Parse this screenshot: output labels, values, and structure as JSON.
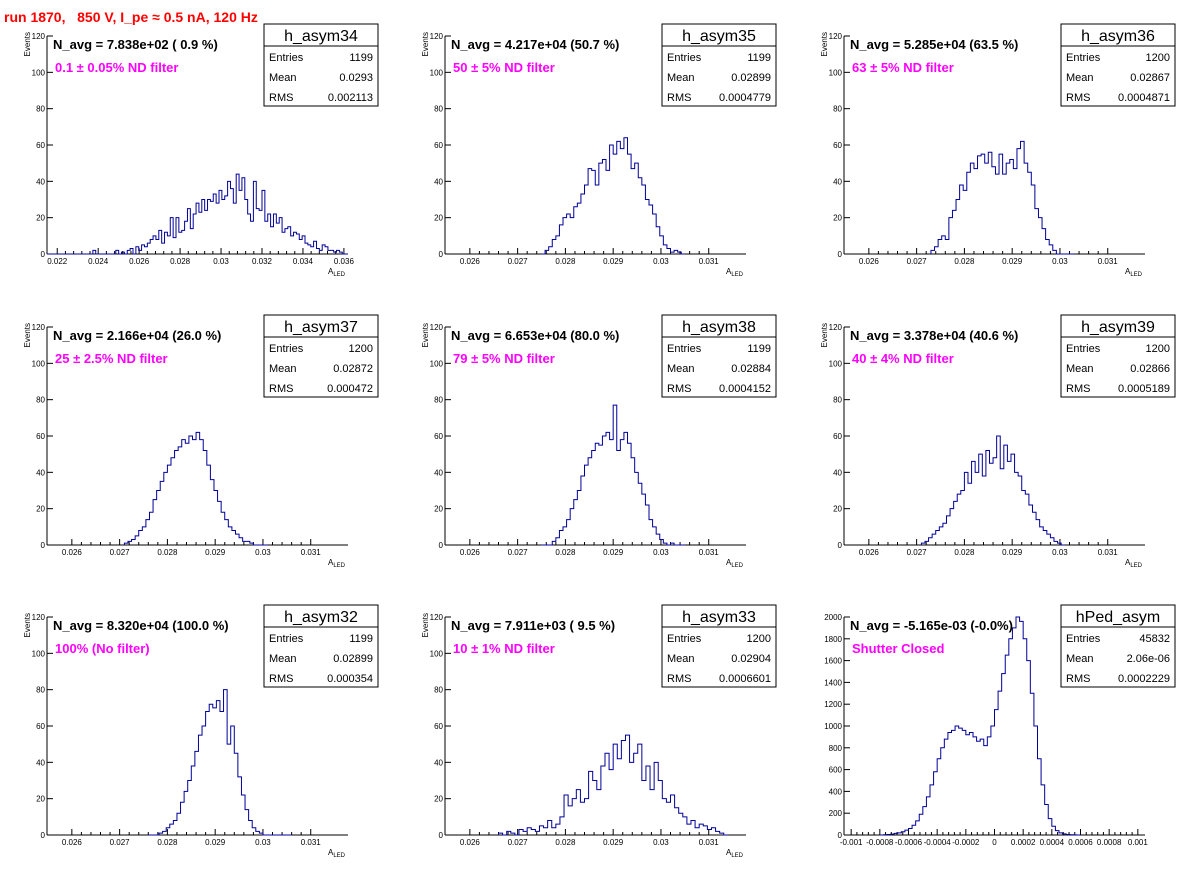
{
  "page": {
    "title": "run 1870,   850 V, I_pe ≈ 0.5 nA, 120 Hz"
  },
  "colors": {
    "title": "#ff0000",
    "hist_line": "#000099",
    "annotation": "#ff00ff",
    "axis": "#000000"
  },
  "chart_data": [
    {
      "type": "histogram",
      "name": "h_asym34",
      "stats": {
        "entries": "1199",
        "mean": "0.0293",
        "rms": "0.002113"
      },
      "navg_label": "N_avg = 7.838e+02 ( 0.9 %)",
      "filter_label": "0.1 ± 0.05% ND filter",
      "xlabel": "A",
      "xlabel_sub": "LED",
      "ylabel": "Events",
      "xlim": [
        0.0215,
        0.0362
      ],
      "ylim": [
        0,
        120
      ],
      "x_ticks": [
        0.022,
        0.024,
        0.026,
        0.028,
        0.03,
        0.032,
        0.034,
        0.036
      ],
      "x_tick_labels": [
        "0.022",
        "0.024",
        "0.026",
        "0.028",
        "0.03",
        "0.032",
        "0.034",
        "0.036"
      ],
      "y_ticks": [
        0,
        20,
        40,
        60,
        80,
        100,
        120
      ],
      "y_tick_labels": [
        "0",
        "20",
        "40",
        "60",
        "80",
        "100",
        "120"
      ],
      "bins": {
        "x_start": 0.0215,
        "x_end": 0.0362,
        "counts": [
          0,
          0,
          0,
          0,
          0,
          0,
          0,
          0,
          0,
          0,
          0,
          0,
          0,
          0,
          0,
          0,
          2,
          0,
          0,
          0,
          0,
          0,
          0,
          0,
          2,
          0,
          1,
          0,
          2,
          3,
          0,
          4,
          2,
          5,
          4,
          6,
          8,
          10,
          8,
          13,
          6,
          12,
          10,
          20,
          9,
          20,
          12,
          13,
          18,
          25,
          14,
          22,
          28,
          23,
          30,
          24,
          30,
          29,
          33,
          28,
          35,
          30,
          32,
          40,
          36,
          28,
          44,
          35,
          42,
          30,
          22,
          18,
          40,
          25,
          24,
          35,
          18,
          22,
          15,
          22,
          17,
          20,
          12,
          14,
          15,
          10,
          12,
          11,
          8,
          10,
          6,
          5,
          4,
          7,
          3,
          2,
          5,
          4,
          2,
          2,
          1,
          2,
          1,
          0,
          0
        ]
      }
    },
    {
      "type": "histogram",
      "name": "h_asym35",
      "stats": {
        "entries": "1199",
        "mean": "0.02899",
        "rms": "0.0004779"
      },
      "navg_label": "N_avg = 4.217e+04 (50.7 %)",
      "filter_label": "50 ± 5% ND filter",
      "xlabel": "A",
      "xlabel_sub": "LED",
      "ylabel": "Events",
      "xlim": [
        0.02548,
        0.03178
      ],
      "ylim": [
        0,
        120
      ],
      "x_ticks": [
        0.026,
        0.027,
        0.028,
        0.029,
        0.03,
        0.031
      ],
      "x_tick_labels": [
        "0.026",
        "0.027",
        "0.028",
        "0.029",
        "0.03",
        "0.031"
      ],
      "y_ticks": [
        0,
        20,
        40,
        60,
        80,
        100,
        120
      ],
      "y_tick_labels": [
        "0",
        "20",
        "40",
        "60",
        "80",
        "100",
        "120"
      ],
      "bins": {
        "x_start": 0.0275,
        "x_end": 0.0305,
        "counts": [
          0,
          2,
          4,
          8,
          10,
          16,
          20,
          22,
          20,
          26,
          28,
          33,
          38,
          47,
          46,
          38,
          50,
          52,
          46,
          60,
          55,
          62,
          58,
          64,
          55,
          47,
          50,
          42,
          38,
          30,
          27,
          22,
          15,
          10,
          5,
          3,
          1,
          2,
          1,
          0
        ]
      }
    },
    {
      "type": "histogram",
      "name": "h_asym36",
      "stats": {
        "entries": "1200",
        "mean": "0.02867",
        "rms": "0.0004871"
      },
      "navg_label": "N_avg = 5.285e+04 (63.5 %)",
      "filter_label": "63 ± 5% ND filter",
      "xlabel": "A",
      "xlabel_sub": "LED",
      "ylabel": "Events",
      "xlim": [
        0.02548,
        0.03178
      ],
      "ylim": [
        0,
        120
      ],
      "x_ticks": [
        0.026,
        0.027,
        0.028,
        0.029,
        0.03,
        0.031
      ],
      "x_tick_labels": [
        "0.026",
        "0.027",
        "0.028",
        "0.029",
        "0.03",
        "0.031"
      ],
      "y_ticks": [
        0,
        20,
        40,
        60,
        80,
        100,
        120
      ],
      "y_tick_labels": [
        "0",
        "20",
        "40",
        "60",
        "80",
        "100",
        "120"
      ],
      "bins": {
        "x_start": 0.0273,
        "x_end": 0.0303,
        "counts": [
          2,
          4,
          8,
          10,
          8,
          20,
          24,
          30,
          38,
          35,
          45,
          50,
          47,
          54,
          55,
          50,
          56,
          48,
          44,
          55,
          44,
          50,
          52,
          47,
          58,
          62,
          50,
          45,
          38,
          25,
          20,
          14,
          8,
          5,
          2,
          0,
          0,
          0,
          0,
          0
        ]
      }
    },
    {
      "type": "histogram",
      "name": "h_asym37",
      "stats": {
        "entries": "1200",
        "mean": "0.02872",
        "rms": "0.000472"
      },
      "navg_label": "N_avg = 2.166e+04 (26.0 %)",
      "filter_label": "25 ± 2.5% ND filter",
      "xlabel": "A",
      "xlabel_sub": "LED",
      "ylabel": "Events",
      "xlim": [
        0.02548,
        0.03178
      ],
      "ylim": [
        0,
        120
      ],
      "x_ticks": [
        0.026,
        0.027,
        0.028,
        0.029,
        0.03,
        0.031
      ],
      "x_tick_labels": [
        "0.026",
        "0.027",
        "0.028",
        "0.029",
        "0.03",
        "0.031"
      ],
      "y_ticks": [
        0,
        20,
        40,
        60,
        80,
        100,
        120
      ],
      "y_tick_labels": [
        "0",
        "20",
        "40",
        "60",
        "80",
        "100",
        "120"
      ],
      "bins": {
        "x_start": 0.0271,
        "x_end": 0.0301,
        "counts": [
          1,
          2,
          3,
          5,
          8,
          10,
          14,
          18,
          25,
          30,
          35,
          40,
          44,
          48,
          52,
          54,
          58,
          56,
          60,
          58,
          62,
          58,
          52,
          44,
          36,
          30,
          24,
          18,
          14,
          10,
          8,
          6,
          4,
          2,
          2,
          1,
          0,
          0,
          0,
          0
        ]
      }
    },
    {
      "type": "histogram",
      "name": "h_asym38",
      "stats": {
        "entries": "1199",
        "mean": "0.02884",
        "rms": "0.0004152"
      },
      "navg_label": "N_avg = 6.653e+04 (80.0 %)",
      "filter_label": "79 ± 5% ND filter",
      "xlabel": "A",
      "xlabel_sub": "LED",
      "ylabel": "Events",
      "xlim": [
        0.02548,
        0.03178
      ],
      "ylim": [
        0,
        120
      ],
      "x_ticks": [
        0.026,
        0.027,
        0.028,
        0.029,
        0.03,
        0.031
      ],
      "x_tick_labels": [
        "0.026",
        "0.027",
        "0.028",
        "0.029",
        "0.03",
        "0.031"
      ],
      "y_ticks": [
        0,
        20,
        40,
        60,
        80,
        100,
        120
      ],
      "y_tick_labels": [
        "0",
        "20",
        "40",
        "60",
        "80",
        "100",
        "120"
      ],
      "bins": {
        "x_start": 0.0275,
        "x_end": 0.0305,
        "counts": [
          0,
          0,
          0,
          2,
          4,
          8,
          10,
          14,
          20,
          25,
          30,
          38,
          44,
          48,
          52,
          56,
          55,
          60,
          62,
          58,
          77,
          52,
          58,
          62,
          56,
          48,
          40,
          34,
          28,
          22,
          14,
          10,
          6,
          3,
          1,
          0,
          1,
          0,
          0,
          0
        ]
      }
    },
    {
      "type": "histogram",
      "name": "h_asym39",
      "stats": {
        "entries": "1200",
        "mean": "0.02866",
        "rms": "0.0005189"
      },
      "navg_label": "N_avg = 3.378e+04 (40.6 %)",
      "filter_label": "40 ± 4% ND filter",
      "xlabel": "A",
      "xlabel_sub": "LED",
      "ylabel": "Events",
      "xlim": [
        0.02548,
        0.03178
      ],
      "ylim": [
        0,
        120
      ],
      "x_ticks": [
        0.026,
        0.027,
        0.028,
        0.029,
        0.03,
        0.031
      ],
      "x_tick_labels": [
        "0.026",
        "0.027",
        "0.028",
        "0.029",
        "0.03",
        "0.031"
      ],
      "y_ticks": [
        0,
        20,
        40,
        60,
        80,
        100,
        120
      ],
      "y_tick_labels": [
        "0",
        "20",
        "40",
        "60",
        "80",
        "100",
        "120"
      ],
      "bins": {
        "x_start": 0.0271,
        "x_end": 0.0301,
        "counts": [
          1,
          2,
          4,
          6,
          8,
          10,
          12,
          16,
          20,
          24,
          28,
          30,
          40,
          34,
          46,
          40,
          50,
          38,
          52,
          45,
          48,
          60,
          42,
          55,
          46,
          50,
          40,
          38,
          30,
          28,
          22,
          18,
          14,
          10,
          8,
          6,
          4,
          2,
          1,
          0
        ]
      }
    },
    {
      "type": "histogram",
      "name": "h_asym32",
      "stats": {
        "entries": "1199",
        "mean": "0.02899",
        "rms": "0.000354"
      },
      "navg_label": "N_avg = 8.320e+04 (100.0 %)",
      "filter_label": "100% (No filter)",
      "xlabel": "A",
      "xlabel_sub": "LED",
      "ylabel": "Events",
      "xlim": [
        0.02548,
        0.03178
      ],
      "ylim": [
        0,
        120
      ],
      "x_ticks": [
        0.026,
        0.027,
        0.028,
        0.029,
        0.03,
        0.031
      ],
      "x_tick_labels": [
        "0.026",
        "0.027",
        "0.028",
        "0.029",
        "0.03",
        "0.031"
      ],
      "y_ticks": [
        0,
        20,
        40,
        60,
        80,
        100,
        120
      ],
      "y_tick_labels": [
        "0",
        "20",
        "40",
        "60",
        "80",
        "100",
        "120"
      ],
      "bins": {
        "x_start": 0.0276,
        "x_end": 0.0306,
        "counts": [
          0,
          0,
          0,
          1,
          2,
          4,
          6,
          8,
          12,
          18,
          24,
          30,
          38,
          46,
          55,
          60,
          68,
          72,
          70,
          74,
          68,
          80,
          50,
          60,
          45,
          32,
          22,
          14,
          8,
          4,
          2,
          1,
          0,
          0,
          0,
          0,
          0,
          0,
          0,
          0
        ]
      }
    },
    {
      "type": "histogram",
      "name": "h_asym33",
      "stats": {
        "entries": "1200",
        "mean": "0.02904",
        "rms": "0.0006601"
      },
      "navg_label": "N_avg = 7.911e+03 ( 9.5 %)",
      "filter_label": "10 ± 1% ND filter",
      "xlabel": "A",
      "xlabel_sub": "LED",
      "ylabel": "Events",
      "xlim": [
        0.02548,
        0.03178
      ],
      "ylim": [
        0,
        120
      ],
      "x_ticks": [
        0.026,
        0.027,
        0.028,
        0.029,
        0.03,
        0.031
      ],
      "x_tick_labels": [
        "0.026",
        "0.027",
        "0.028",
        "0.029",
        "0.03",
        "0.031"
      ],
      "y_ticks": [
        0,
        20,
        40,
        60,
        80,
        100,
        120
      ],
      "y_tick_labels": [
        "0",
        "20",
        "40",
        "60",
        "80",
        "100",
        "120"
      ],
      "bins": {
        "x_start": 0.0266,
        "x_end": 0.0314,
        "counts": [
          1,
          0,
          2,
          1,
          0,
          3,
          2,
          4,
          3,
          2,
          5,
          4,
          8,
          4,
          6,
          10,
          22,
          16,
          20,
          25,
          18,
          20,
          35,
          30,
          25,
          38,
          45,
          36,
          50,
          42,
          52,
          55,
          40,
          45,
          50,
          30,
          38,
          25,
          40,
          30,
          20,
          18,
          22,
          15,
          12,
          10,
          6,
          8,
          4,
          6,
          5,
          3,
          4,
          2,
          1,
          0
        ]
      }
    },
    {
      "type": "histogram",
      "name": "hPed_asym",
      "stats": {
        "entries": "45832",
        "mean": "2.06e-06",
        "rms": "0.0002229"
      },
      "navg_label": "N_avg = -5.165e-03 (-0.0%)",
      "filter_label": "Shutter Closed",
      "xlabel": "",
      "xlabel_sub": "",
      "ylabel": "",
      "xlim": [
        -0.00105,
        0.00105
      ],
      "ylim": [
        0,
        2000
      ],
      "x_ticks": [
        -0.001,
        -0.0008,
        -0.0006,
        -0.0004,
        -0.0002,
        0,
        0.0002,
        0.0004,
        0.0006,
        0.0008,
        0.001
      ],
      "x_tick_labels": [
        "-0.001",
        "-0.0008",
        "-0.0006",
        "-0.0004",
        "-0.0002",
        "0",
        "0.0002",
        "0.0004",
        "0.0006",
        "0.0008",
        "0.001"
      ],
      "y_ticks": [
        0,
        200,
        400,
        600,
        800,
        1000,
        1200,
        1400,
        1600,
        1800,
        2000
      ],
      "y_tick_labels": [
        "0",
        "200",
        "400",
        "600",
        "800",
        "1000",
        "1200",
        "1400",
        "1600",
        "1800",
        "2000"
      ],
      "bins": {
        "x_start": -0.0008,
        "x_end": 0.0006,
        "counts": [
          0,
          2,
          5,
          8,
          15,
          20,
          30,
          45,
          60,
          90,
          130,
          190,
          260,
          350,
          460,
          580,
          700,
          800,
          880,
          940,
          960,
          1000,
          980,
          960,
          920,
          940,
          900,
          860,
          880,
          820,
          900,
          1000,
          1150,
          1320,
          1480,
          1650,
          1800,
          1900,
          2000,
          1960,
          1800,
          1600,
          1300,
          1000,
          700,
          460,
          280,
          150,
          80,
          40,
          20,
          10,
          5,
          2,
          1,
          0
        ]
      }
    }
  ]
}
